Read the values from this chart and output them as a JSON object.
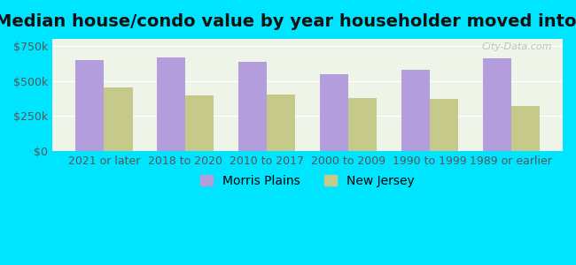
{
  "title": "Median house/condo value by year householder moved into unit",
  "categories": [
    "2021 or later",
    "2018 to 2020",
    "2010 to 2017",
    "2000 to 2009",
    "1990 to 1999",
    "1989 or earlier"
  ],
  "morris_plains": [
    650000,
    670000,
    635000,
    545000,
    580000,
    660000
  ],
  "new_jersey": [
    455000,
    395000,
    400000,
    375000,
    370000,
    320000
  ],
  "bar_color_mp": "#b39ddb",
  "bar_color_nj": "#c5c98a",
  "background_color": "#00e5ff",
  "yticks": [
    0,
    250000,
    500000,
    750000
  ],
  "ylim": [
    0,
    800000
  ],
  "ylabel_labels": [
    "$0",
    "$250k",
    "$500k",
    "$750k"
  ],
  "legend_mp": "Morris Plains",
  "legend_nj": "New Jersey",
  "title_fontsize": 14,
  "tick_fontsize": 9,
  "legend_fontsize": 10
}
